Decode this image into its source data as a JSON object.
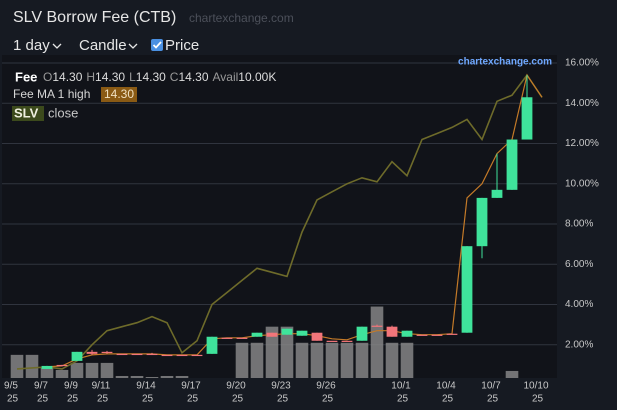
{
  "chart_data": {
    "type": "candlestick",
    "title": "SLV Borrow Fee (CTB)",
    "watermark": "chartexchange.com",
    "toolbar": {
      "interval": "1 day",
      "style": "Candle",
      "overlay": "Price",
      "overlay_checked": true
    },
    "legend": {
      "name": "Fee",
      "fields": [
        {
          "label": "O",
          "value": "14.30"
        },
        {
          "label": "H",
          "value": "14.30"
        },
        {
          "label": "L",
          "value": "14.30"
        },
        {
          "label": "C",
          "value": "14.30"
        },
        {
          "label": "Avail",
          "value": "10.00K"
        }
      ],
      "ma_label": "Fee MA 1 high",
      "ma_value": "14.30",
      "price_symbol": "SLV",
      "price_field": "close"
    },
    "x": [
      "2025-09-05",
      "2025-09-06",
      "2025-09-07",
      "2025-09-08",
      "2025-09-09",
      "2025-09-10",
      "2025-09-11",
      "2025-09-12",
      "2025-09-13",
      "2025-09-14",
      "2025-09-15",
      "2025-09-16",
      "2025-09-17",
      "2025-09-18",
      "2025-09-19",
      "2025-09-20",
      "2025-09-21",
      "2025-09-22",
      "2025-09-23",
      "2025-09-24",
      "2025-09-25",
      "2025-09-26",
      "2025-09-27",
      "2025-09-28",
      "2025-09-29",
      "2025-09-30",
      "2025-10-01",
      "2025-10-02",
      "2025-10-03",
      "2025-10-04",
      "2025-10-05",
      "2025-10-06",
      "2025-10-07",
      "2025-10-08",
      "2025-10-09",
      "2025-10-10"
    ],
    "open": [
      null,
      null,
      0.8,
      1.0,
      1.2,
      1.65,
      1.65,
      1.55,
      1.55,
      1.55,
      1.5,
      1.5,
      1.5,
      1.55,
      2.35,
      2.35,
      2.4,
      2.6,
      2.5,
      2.45,
      2.6,
      2.2,
      2.2,
      2.2,
      2.95,
      2.9,
      2.4,
      2.5,
      2.5,
      2.55,
      2.6,
      6.9,
      9.3,
      9.7,
      12.2,
      null
    ],
    "high": [
      null,
      null,
      0.95,
      1.0,
      1.65,
      1.75,
      1.7,
      1.55,
      1.55,
      1.6,
      1.5,
      1.5,
      1.5,
      2.4,
      2.35,
      2.35,
      2.6,
      2.6,
      2.8,
      2.7,
      2.6,
      2.2,
      2.2,
      2.9,
      3.0,
      2.95,
      2.7,
      2.5,
      2.5,
      2.55,
      6.9,
      9.3,
      11.5,
      12.2,
      15.4,
      null
    ],
    "low": [
      null,
      null,
      0.8,
      0.95,
      1.2,
      1.5,
      1.55,
      1.55,
      1.55,
      1.5,
      1.5,
      1.5,
      1.5,
      1.55,
      2.35,
      2.35,
      2.4,
      2.4,
      2.5,
      2.45,
      2.2,
      2.2,
      2.2,
      2.2,
      2.9,
      2.4,
      2.4,
      2.5,
      2.5,
      2.55,
      2.6,
      6.3,
      9.3,
      9.7,
      12.2,
      null
    ],
    "close": [
      null,
      null,
      0.95,
      0.95,
      1.65,
      1.55,
      1.6,
      1.55,
      1.55,
      1.5,
      1.5,
      1.5,
      1.5,
      2.4,
      2.35,
      2.35,
      2.6,
      2.4,
      2.8,
      2.7,
      2.2,
      2.2,
      2.2,
      2.9,
      2.9,
      2.4,
      2.7,
      2.5,
      2.5,
      2.55,
      6.9,
      9.3,
      9.7,
      12.2,
      14.3,
      null
    ],
    "up_color": "#3fe39b",
    "down_color": "#f2757a",
    "volume": {
      "color": "#8c8c8c",
      "values": [
        1.5,
        1.5,
        0.85,
        0.75,
        1.1,
        1.1,
        1.1,
        0.45,
        0.45,
        0.4,
        0.45,
        0.45,
        null,
        null,
        null,
        2.1,
        2.1,
        2.9,
        2.9,
        2.1,
        2.1,
        2.1,
        2.1,
        2.1,
        3.9,
        2.1,
        2.1,
        null,
        null,
        null,
        null,
        null,
        null,
        0.7,
        null,
        null
      ]
    },
    "series": [
      {
        "name": "SLV close",
        "color": "#6e6b2a",
        "values": [
          0.8,
          0.85,
          0.9,
          0.8,
          1.2,
          2.0,
          2.7,
          2.9,
          3.1,
          3.4,
          3.1,
          1.6,
          2.2,
          4.0,
          4.6,
          5.2,
          5.8,
          5.6,
          5.4,
          7.6,
          9.2,
          9.6,
          10.0,
          10.3,
          10.1,
          11.1,
          10.4,
          12.2,
          12.5,
          12.8,
          13.2,
          12.2,
          14.1,
          14.4,
          15.4,
          14.3
        ]
      },
      {
        "name": "Fee MA 1 high",
        "color": "#c47a28",
        "values": [
          null,
          null,
          0.9,
          0.95,
          1.3,
          1.5,
          1.55,
          1.55,
          1.55,
          1.55,
          1.5,
          1.5,
          1.5,
          2.3,
          2.35,
          2.35,
          2.45,
          2.5,
          2.55,
          2.55,
          2.45,
          2.3,
          2.25,
          2.5,
          2.7,
          2.7,
          2.55,
          2.5,
          2.5,
          2.55,
          9.3,
          10.0,
          11.5,
          12.2,
          15.4,
          14.3
        ]
      }
    ],
    "xlim": [
      "2025-09-04",
      "2025-10-11"
    ],
    "xticks": [
      {
        "value": "2025-09-05",
        "label": "9/5"
      },
      {
        "value": "2025-09-07",
        "label": "9/7"
      },
      {
        "value": "2025-09-09",
        "label": "9/9"
      },
      {
        "value": "2025-09-11",
        "label": "9/11"
      },
      {
        "value": "2025-09-14",
        "label": "9/14"
      },
      {
        "value": "2025-09-17",
        "label": "9/17"
      },
      {
        "value": "2025-09-20",
        "label": "9/20"
      },
      {
        "value": "2025-09-23",
        "label": "9/23"
      },
      {
        "value": "2025-09-26",
        "label": "9/26"
      },
      {
        "value": "2025-10-01",
        "label": "10/1"
      },
      {
        "value": "2025-10-04",
        "label": "10/4"
      },
      {
        "value": "2025-10-07",
        "label": "10/7"
      },
      {
        "value": "2025-10-10",
        "label": "10/10"
      }
    ],
    "xtick_year": "25",
    "ylim": [
      0.35,
      16.4
    ],
    "yticks": [
      {
        "value": 2,
        "label": "2.00%"
      },
      {
        "value": 4,
        "label": "4.00%"
      },
      {
        "value": 6,
        "label": "6.00%"
      },
      {
        "value": 8,
        "label": "8.00%"
      },
      {
        "value": 10,
        "label": "10.00%"
      },
      {
        "value": 12,
        "label": "12.00%"
      },
      {
        "value": 14,
        "label": "14.00%"
      },
      {
        "value": 16,
        "label": "16.00%"
      }
    ],
    "grid": true
  }
}
